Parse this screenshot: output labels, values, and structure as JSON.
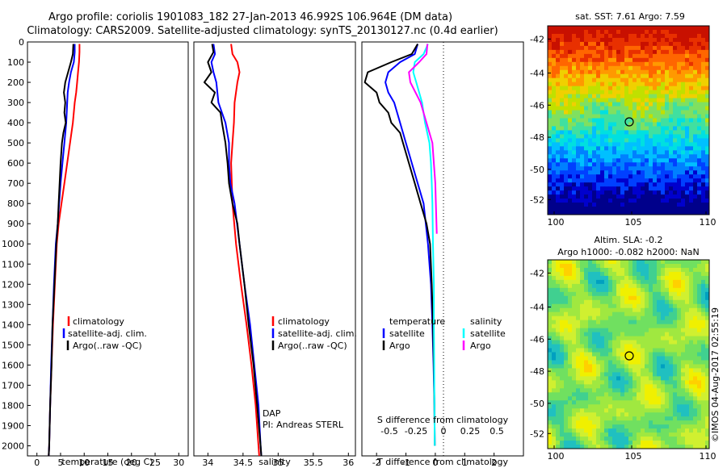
{
  "header": {
    "title_line1": "Argo profile: coriolis 1901083_182 27-Jan-2013 46.992S 106.964E (DM data)",
    "title_line2": "Climatology: CARS2009. Satellite-adjusted climatology: synTS_20130127.nc (0.4d earlier)"
  },
  "watermark": "©IMOS 04-Aug-2017 02:55:19",
  "colors": {
    "climatology": "#ff0000",
    "satellite": "#0000ff",
    "argo": "#000000",
    "s_satellite": "#00ffff",
    "s_argo": "#ff00ff"
  },
  "chart_data": [
    {
      "type": "line",
      "panel": "temperature",
      "xlabel": "temperature (deg C)",
      "xlim": [
        -2,
        32
      ],
      "xticks": [
        0,
        5,
        10,
        15,
        20,
        25,
        30
      ],
      "ylim": [
        2050,
        0
      ],
      "yticks": [
        0,
        100,
        200,
        300,
        400,
        500,
        600,
        700,
        800,
        900,
        1000,
        1100,
        1200,
        1300,
        1400,
        1500,
        1600,
        1700,
        1800,
        1900,
        2000
      ],
      "legend": [
        "climatology",
        "satellite-adj. clim.",
        "Argo(..raw -QC)"
      ],
      "series": [
        {
          "name": "climatology",
          "color": "#ff0000",
          "points": [
            [
              9.0,
              10
            ],
            [
              9.0,
              50
            ],
            [
              8.9,
              100
            ],
            [
              8.7,
              150
            ],
            [
              8.5,
              200
            ],
            [
              8.3,
              250
            ],
            [
              8.0,
              300
            ],
            [
              7.6,
              400
            ],
            [
              7.0,
              500
            ],
            [
              6.4,
              600
            ],
            [
              5.8,
              700
            ],
            [
              5.2,
              800
            ],
            [
              4.6,
              900
            ],
            [
              4.2,
              1000
            ],
            [
              3.8,
              1200
            ],
            [
              3.4,
              1400
            ],
            [
              3.1,
              1600
            ],
            [
              2.8,
              1800
            ],
            [
              2.6,
              2000
            ],
            [
              2.5,
              2050
            ]
          ]
        },
        {
          "name": "satellite-adj. clim.",
          "color": "#0000ff",
          "points": [
            [
              8.0,
              10
            ],
            [
              8.0,
              50
            ],
            [
              7.8,
              100
            ],
            [
              7.2,
              150
            ],
            [
              6.8,
              200
            ],
            [
              6.5,
              250
            ],
            [
              6.4,
              300
            ],
            [
              6.2,
              400
            ],
            [
              5.8,
              500
            ],
            [
              5.4,
              600
            ],
            [
              5.0,
              700
            ],
            [
              4.7,
              800
            ],
            [
              4.4,
              900
            ],
            [
              4.0,
              1000
            ],
            [
              3.6,
              1200
            ],
            [
              3.3,
              1400
            ],
            [
              3.0,
              1600
            ],
            [
              2.8,
              1800
            ],
            [
              2.6,
              2000
            ],
            [
              2.5,
              2050
            ]
          ]
        },
        {
          "name": "Argo(..raw -QC)",
          "color": "#000000",
          "points": [
            [
              7.7,
              10
            ],
            [
              7.6,
              60
            ],
            [
              7.2,
              100
            ],
            [
              6.6,
              150
            ],
            [
              6.0,
              200
            ],
            [
              5.7,
              250
            ],
            [
              6.0,
              300
            ],
            [
              5.8,
              350
            ],
            [
              6.1,
              400
            ],
            [
              5.6,
              450
            ],
            [
              5.3,
              500
            ],
            [
              5.0,
              600
            ],
            [
              4.8,
              700
            ],
            [
              4.6,
              800
            ],
            [
              4.4,
              900
            ],
            [
              4.1,
              1000
            ],
            [
              3.7,
              1200
            ],
            [
              3.3,
              1400
            ],
            [
              3.1,
              1600
            ],
            [
              2.8,
              1800
            ],
            [
              2.6,
              2000
            ],
            [
              2.5,
              2050
            ]
          ]
        }
      ]
    },
    {
      "type": "line",
      "panel": "salinity",
      "xlabel": "salinity",
      "xlim": [
        33.8,
        36.1
      ],
      "xticks": [
        34,
        34.5,
        35,
        35.5,
        36
      ],
      "ylim": [
        2050,
        0
      ],
      "legend": [
        "climatology",
        "satellite-adj. clim.",
        "Argo(..raw -QC)"
      ],
      "annotations": [
        "DAP",
        "PI: Andreas STERL"
      ],
      "series": [
        {
          "name": "climatology",
          "color": "#ff0000",
          "points": [
            [
              34.33,
              10
            ],
            [
              34.35,
              60
            ],
            [
              34.42,
              100
            ],
            [
              34.45,
              150
            ],
            [
              34.42,
              200
            ],
            [
              34.38,
              300
            ],
            [
              34.37,
              400
            ],
            [
              34.35,
              500
            ],
            [
              34.33,
              600
            ],
            [
              34.35,
              800
            ],
            [
              34.4,
              1000
            ],
            [
              34.47,
              1200
            ],
            [
              34.55,
              1400
            ],
            [
              34.62,
              1600
            ],
            [
              34.68,
              1800
            ],
            [
              34.72,
              2000
            ],
            [
              34.73,
              2050
            ]
          ]
        },
        {
          "name": "satellite-adj. clim.",
          "color": "#0000ff",
          "points": [
            [
              34.08,
              10
            ],
            [
              34.1,
              60
            ],
            [
              34.05,
              100
            ],
            [
              34.08,
              150
            ],
            [
              34.12,
              200
            ],
            [
              34.15,
              300
            ],
            [
              34.25,
              400
            ],
            [
              34.3,
              500
            ],
            [
              34.3,
              600
            ],
            [
              34.32,
              700
            ],
            [
              34.38,
              800
            ],
            [
              34.45,
              1000
            ],
            [
              34.52,
              1200
            ],
            [
              34.6,
              1400
            ],
            [
              34.66,
              1600
            ],
            [
              34.72,
              1800
            ],
            [
              34.75,
              2000
            ],
            [
              34.76,
              2050
            ]
          ]
        },
        {
          "name": "Argo(..raw -QC)",
          "color": "#000000",
          "points": [
            [
              34.06,
              10
            ],
            [
              34.08,
              50
            ],
            [
              34.0,
              100
            ],
            [
              34.05,
              150
            ],
            [
              33.95,
              200
            ],
            [
              34.1,
              250
            ],
            [
              34.05,
              300
            ],
            [
              34.18,
              350
            ],
            [
              34.2,
              400
            ],
            [
              34.25,
              500
            ],
            [
              34.28,
              600
            ],
            [
              34.3,
              700
            ],
            [
              34.35,
              800
            ],
            [
              34.42,
              900
            ],
            [
              34.45,
              1000
            ],
            [
              34.52,
              1200
            ],
            [
              34.58,
              1400
            ],
            [
              34.65,
              1600
            ],
            [
              34.7,
              1800
            ],
            [
              34.75,
              2000
            ],
            [
              34.76,
              2050
            ]
          ]
        }
      ]
    },
    {
      "type": "line",
      "panel": "difference",
      "xlabel": "T difference from climatology",
      "xlabel_top": "S difference from climatology",
      "xlim": [
        -2.5,
        3.0
      ],
      "xticks": [
        -2,
        -1,
        0,
        1,
        2
      ],
      "s_ticks_labels": [
        "-0.5",
        "-0.25",
        "0",
        "0.25",
        "0.5"
      ],
      "ylim": [
        2050,
        0
      ],
      "legend_temperature_title": "temperature",
      "legend_salinity_title": "salinity",
      "legend_temperature": [
        "satellite",
        "Argo"
      ],
      "legend_salinity": [
        "satellite",
        "Argo"
      ],
      "series": [
        {
          "name": "temperature satellite",
          "color": "#0000ff",
          "points": [
            [
              -0.6,
              10
            ],
            [
              -0.7,
              60
            ],
            [
              -1.2,
              100
            ],
            [
              -1.6,
              150
            ],
            [
              -1.7,
              200
            ],
            [
              -1.6,
              250
            ],
            [
              -1.4,
              300
            ],
            [
              -1.2,
              400
            ],
            [
              -1.0,
              500
            ],
            [
              -0.8,
              600
            ],
            [
              -0.6,
              700
            ],
            [
              -0.4,
              800
            ],
            [
              -0.25,
              1000
            ],
            [
              -0.15,
              1200
            ],
            [
              -0.1,
              1400
            ],
            [
              -0.06,
              1600
            ],
            [
              -0.03,
              1800
            ],
            [
              -0.02,
              2000
            ]
          ]
        },
        {
          "name": "temperature Argo",
          "color": "#000000",
          "points": [
            [
              -0.6,
              10
            ],
            [
              -0.8,
              60
            ],
            [
              -1.5,
              100
            ],
            [
              -2.3,
              150
            ],
            [
              -2.4,
              200
            ],
            [
              -2.0,
              250
            ],
            [
              -1.9,
              300
            ],
            [
              -1.6,
              350
            ],
            [
              -1.5,
              400
            ],
            [
              -1.2,
              450
            ],
            [
              -1.1,
              500
            ],
            [
              -0.9,
              600
            ],
            [
              -0.7,
              700
            ],
            [
              -0.5,
              800
            ],
            [
              -0.3,
              900
            ],
            [
              -0.18,
              1000
            ],
            [
              -0.12,
              1200
            ],
            [
              -0.08,
              1400
            ],
            [
              -0.05,
              1600
            ],
            [
              -0.03,
              1800
            ],
            [
              -0.02,
              2000
            ]
          ]
        },
        {
          "name": "salinity satellite",
          "color": "#00ffff",
          "points": [
            [
              -0.25,
              10
            ],
            [
              -0.4,
              60
            ],
            [
              -0.7,
              100
            ],
            [
              -0.75,
              150
            ],
            [
              -0.65,
              200
            ],
            [
              -0.45,
              300
            ],
            [
              -0.35,
              400
            ],
            [
              -0.2,
              500
            ],
            [
              -0.15,
              600
            ],
            [
              -0.12,
              700
            ],
            [
              -0.1,
              800
            ],
            [
              -0.08,
              1000
            ],
            [
              -0.05,
              1200
            ],
            [
              -0.05,
              1400
            ],
            [
              -0.04,
              1600
            ],
            [
              -0.03,
              1800
            ],
            [
              -0.02,
              2000
            ]
          ]
        },
        {
          "name": "salinity Argo",
          "color": "#ff00ff",
          "points": [
            [
              -0.27,
              10
            ],
            [
              -0.3,
              60
            ],
            [
              -0.55,
              100
            ],
            [
              -0.9,
              150
            ],
            [
              -0.85,
              200
            ],
            [
              -0.5,
              300
            ],
            [
              -0.3,
              400
            ],
            [
              -0.1,
              500
            ],
            [
              -0.05,
              600
            ],
            [
              0.0,
              700
            ],
            [
              0.02,
              800
            ],
            [
              0.05,
              950
            ]
          ]
        }
      ]
    },
    {
      "type": "heatmap",
      "panel": "sst_map",
      "title": "sat. SST: 7.61  Argo: 7.59",
      "xticks": [
        "100",
        "105",
        "110"
      ],
      "yticks": [
        "-42",
        "-44",
        "-46",
        "-48",
        "-50",
        "-52"
      ],
      "marker_label": "Argo position",
      "marker": {
        "lon": 106.964,
        "lat": -46.992
      }
    },
    {
      "type": "heatmap",
      "panel": "sla_map",
      "title_line1": "Altim. SLA: -0.2",
      "title_line2": "Argo h1000: -0.082 h2000: NaN",
      "xticks": [
        "100",
        "105",
        "110"
      ],
      "yticks": [
        "-42",
        "-44",
        "-46",
        "-48",
        "-50",
        "-52"
      ],
      "marker": {
        "lon": 106.964,
        "lat": -46.992
      }
    }
  ]
}
